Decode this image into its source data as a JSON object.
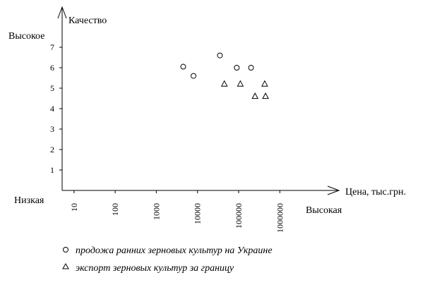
{
  "chart_data": {
    "type": "scatter",
    "title": "",
    "xlabel": "Цена, тыс.грн.",
    "ylabel": "Качество",
    "x_scale": "log",
    "xlim": [
      1,
      1000000
    ],
    "ylim": [
      0,
      7.5
    ],
    "x_ticks": [
      "10",
      "100",
      "1000",
      "10000",
      "100000",
      "1000000"
    ],
    "y_ticks": [
      "1",
      "2",
      "3",
      "4",
      "5",
      "6",
      "7"
    ],
    "x_low_label": "Низкая",
    "x_high_label": "Высокая",
    "y_high_label": "Высокое",
    "grid": false,
    "legend_position": "bottom",
    "series": [
      {
        "name": "продожа ранних зерновых культур на Украине",
        "marker": "circle",
        "points": [
          {
            "x": 4500,
            "y": 6.05
          },
          {
            "x": 8000,
            "y": 5.6
          },
          {
            "x": 35000,
            "y": 6.6
          },
          {
            "x": 90000,
            "y": 6.0
          },
          {
            "x": 200000,
            "y": 6.0
          }
        ]
      },
      {
        "name": "экспорт зерновых культур за границу",
        "marker": "triangle",
        "points": [
          {
            "x": 45000,
            "y": 5.2
          },
          {
            "x": 110000,
            "y": 5.2
          },
          {
            "x": 250000,
            "y": 4.6
          },
          {
            "x": 430000,
            "y": 5.2
          },
          {
            "x": 450000,
            "y": 4.6
          }
        ]
      }
    ]
  }
}
